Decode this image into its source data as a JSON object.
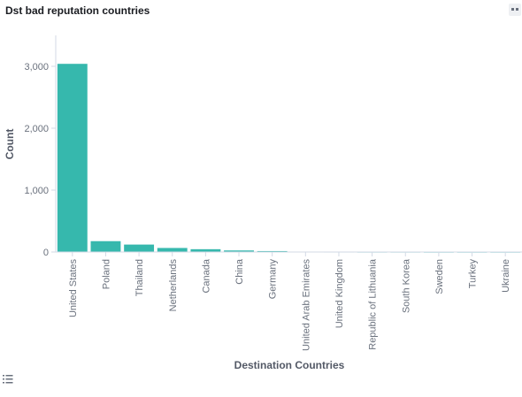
{
  "panel": {
    "title": "Dst bad reputation countries",
    "menu_icon": "options-icon",
    "legend_icon": "legend-toggle-icon"
  },
  "colors": {
    "bar": "#36b8ad",
    "axis": "#d3dae6",
    "tick_text": "#6a717d",
    "label_text": "#69707d"
  },
  "chart_data": {
    "type": "bar",
    "title": "Dst bad reputation countries",
    "xlabel": "Destination Countries",
    "ylabel": "Count",
    "ylim": [
      0,
      3500
    ],
    "yticks": [
      0,
      1000,
      2000,
      3000
    ],
    "ytick_labels": [
      "0",
      "1,000",
      "2,000",
      "3,000"
    ],
    "grid": false,
    "categories": [
      "United States",
      "Poland",
      "Thailand",
      "Netherlands",
      "Canada",
      "China",
      "Germany",
      "United Arab Emirates",
      "United Kingdom",
      "Republic of Lithuania",
      "South Korea",
      "Sweden",
      "Turkey",
      "Ukraine"
    ],
    "values": [
      3040,
      175,
      120,
      65,
      45,
      25,
      15,
      5,
      4,
      3,
      3,
      2,
      2,
      2
    ]
  }
}
